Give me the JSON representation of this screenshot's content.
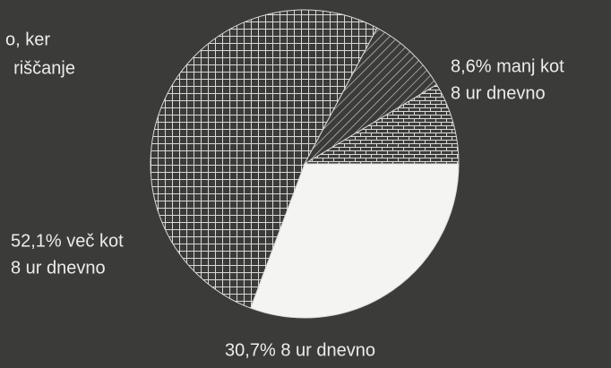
{
  "chart_data": {
    "type": "pie",
    "categories": [
      [
        "30,7% 8 ur dnevno"
      ],
      [
        "52,1% več kot",
        "8 ur dnevno"
      ],
      [
        "8,6% manj kot",
        "8 ur dnevno"
      ],
      [
        "o, ker",
        "riščanje"
      ]
    ],
    "values": [
      30.7,
      52.1,
      8.6,
      8.6
    ],
    "patterns": [
      "solid",
      "grid",
      "diagonal",
      "brick"
    ],
    "color": "#f4f4f2"
  }
}
